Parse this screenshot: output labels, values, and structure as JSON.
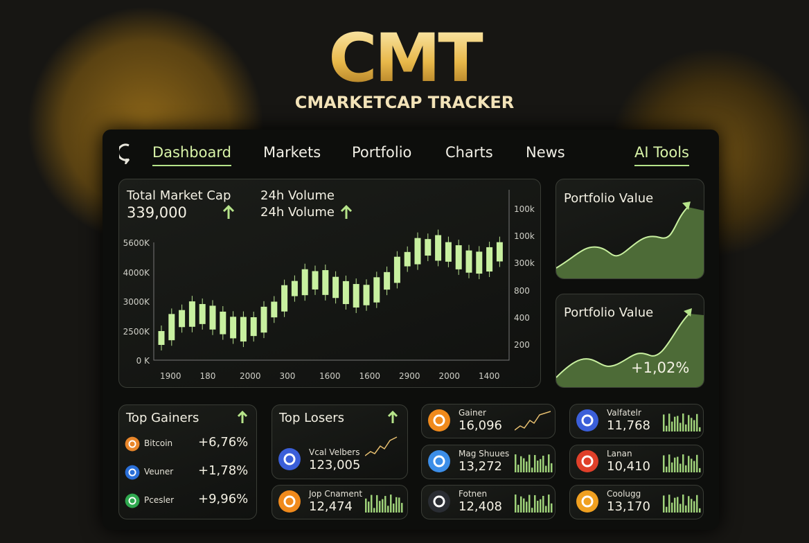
{
  "header": {
    "logo": "CMT",
    "subtitle": "CMARKETCAP TRACKER"
  },
  "nav": [
    "Dashboard",
    "Markets",
    "Portfolio",
    "Charts",
    "News",
    "AI Tools"
  ],
  "market_card": {
    "label": "Total Market Cap",
    "value": "339,000",
    "volume_label": "24h Volume",
    "volume_label_2": "24h Volume",
    "y_labels_left": [
      "5600K",
      "4000K",
      "3000K",
      "2500K",
      "0  K"
    ],
    "y_labels_right": [
      "100k",
      "100k",
      "300k",
      "800",
      "400",
      "200"
    ],
    "x_labels": [
      "1900",
      "180",
      "2000",
      "300",
      "1600",
      "1600",
      "2900",
      "2000",
      "1400"
    ]
  },
  "portfolio_cards": [
    {
      "title": "Portfolio Value"
    },
    {
      "title": "Portfolio Value",
      "change": "+1,02%"
    }
  ],
  "top_gainers": {
    "title": "Top Gainers",
    "rows": [
      [
        "Bitcoin",
        "+6,76%"
      ],
      [
        "Veuner",
        "+1,78%"
      ],
      [
        "Pcesler",
        "+9,96%"
      ]
    ]
  },
  "top_losers": {
    "title": "Top Losers",
    "name": "Vcal Velbers",
    "value": "123,005"
  },
  "coin_cards": [
    {
      "name": "Jop Cnament",
      "value": "12,474"
    },
    {
      "name": "Gainer",
      "value": "16,096"
    },
    {
      "name": "Mag Shuues",
      "value": "13,272"
    },
    {
      "name": "Fotnen",
      "value": "12,408"
    },
    {
      "name": "Valfatelr",
      "value": "11,768"
    },
    {
      "name": "Lanan",
      "value": "10,410"
    },
    {
      "name": "Coolugg",
      "value": "13,170"
    }
  ]
}
